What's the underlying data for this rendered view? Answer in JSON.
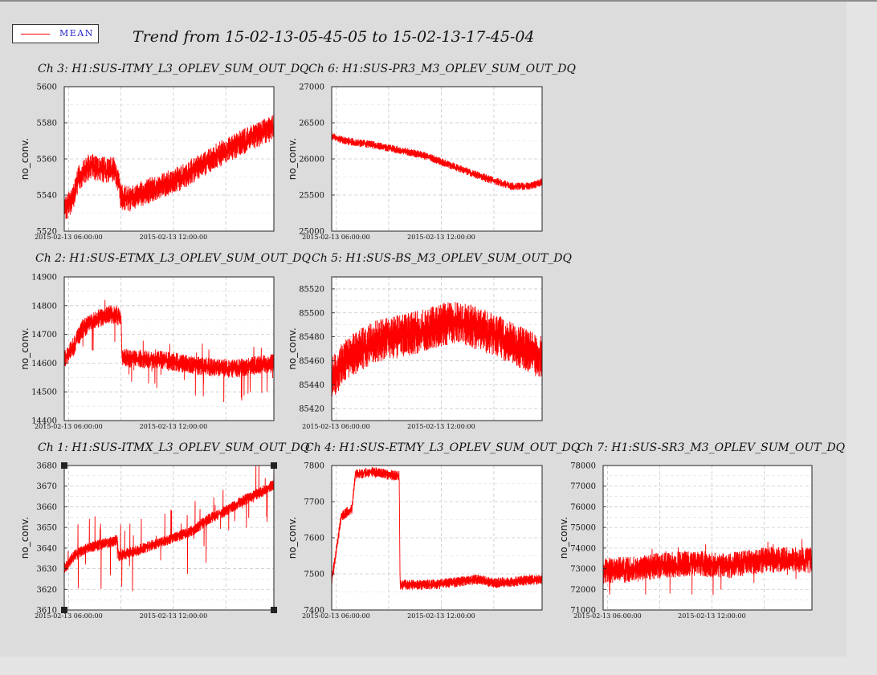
{
  "page": {
    "title": "Trend from 15-02-13-05-45-05 to 15-02-13-17-45-04",
    "legend_label": "MEAN",
    "series_color": "#ff0000",
    "background": "#dcdcdc"
  },
  "chart_data": [
    {
      "type": "line",
      "title": "Ch 3: H1:SUS-ITMY_L3_OPLEV_SUM_OUT_DQ",
      "ylabel": "no_conv.",
      "xticks": [
        "2015-02-13 06:00:00",
        "2015-02-13 12:00:00"
      ],
      "xlim_hours": [
        5.75,
        17.75
      ],
      "yticks": [
        5520,
        5540,
        5560,
        5580,
        5600
      ],
      "ylim": [
        5520,
        5600
      ],
      "grid": true,
      "series": [
        {
          "name": "MEAN",
          "shape": [
            [
              5.75,
              5532
            ],
            [
              6.2,
              5537
            ],
            [
              6.6,
              5550
            ],
            [
              7.2,
              5556
            ],
            [
              8.0,
              5554
            ],
            [
              8.6,
              5554
            ],
            [
              8.9,
              5548
            ],
            [
              8.95,
              5539
            ],
            [
              9.5,
              5538
            ],
            [
              10.5,
              5542
            ],
            [
              11.5,
              5546
            ],
            [
              12.5,
              5550
            ],
            [
              13.5,
              5556
            ],
            [
              14.5,
              5562
            ],
            [
              15.5,
              5567
            ],
            [
              16.5,
              5572
            ],
            [
              17.2,
              5575
            ],
            [
              17.75,
              5578
            ]
          ],
          "noise": 4,
          "spikes": 3
        }
      ]
    },
    {
      "type": "line",
      "title": "Ch 6: H1:SUS-PR3_M3_OPLEV_SUM_OUT_DQ",
      "ylabel": "no_conv.",
      "xticks": [
        "2015-02-13 06:00:00",
        "2015-02-13 12:00:00"
      ],
      "xlim_hours": [
        5.75,
        17.75
      ],
      "yticks": [
        25000,
        25500,
        26000,
        26500,
        27000
      ],
      "ylim": [
        25000,
        27000
      ],
      "grid": true,
      "series": [
        {
          "name": "MEAN",
          "shape": [
            [
              5.75,
              26320
            ],
            [
              6.5,
              26250
            ],
            [
              8.0,
              26200
            ],
            [
              10.0,
              26100
            ],
            [
              11.0,
              26050
            ],
            [
              12.0,
              25960
            ],
            [
              13.0,
              25870
            ],
            [
              14.0,
              25780
            ],
            [
              15.0,
              25700
            ],
            [
              16.0,
              25620
            ],
            [
              17.0,
              25620
            ],
            [
              17.75,
              25680
            ]
          ],
          "noise": 30,
          "spikes": 60
        }
      ]
    },
    {
      "type": "line",
      "title": "Ch 2: H1:SUS-ETMX_L3_OPLEV_SUM_OUT_DQ",
      "ylabel": "no_conv.",
      "xticks": [
        "2015-02-13 06:00:00",
        "2015-02-13 12:00:00"
      ],
      "xlim_hours": [
        5.75,
        17.75
      ],
      "yticks": [
        14400,
        14500,
        14600,
        14700,
        14800,
        14900
      ],
      "ylim": [
        14400,
        14900
      ],
      "grid": true,
      "series": [
        {
          "name": "MEAN",
          "shape": [
            [
              5.75,
              14610
            ],
            [
              6.3,
              14660
            ],
            [
              6.8,
              14720
            ],
            [
              7.5,
              14750
            ],
            [
              8.4,
              14770
            ],
            [
              9.0,
              14760
            ],
            [
              9.05,
              14620
            ],
            [
              10.0,
              14615
            ],
            [
              11.5,
              14610
            ],
            [
              12.5,
              14600
            ],
            [
              13.5,
              14590
            ],
            [
              14.5,
              14585
            ],
            [
              15.5,
              14580
            ],
            [
              16.5,
              14590
            ],
            [
              17.75,
              14600
            ]
          ],
          "noise": 18,
          "spikes": 120
        }
      ]
    },
    {
      "type": "line",
      "title": "Ch 5: H1:SUS-BS_M3_OPLEV_SUM_OUT_DQ",
      "ylabel": "no_conv.",
      "xticks": [
        "2015-02-13 06:00:00",
        "2015-02-13 12:00:00"
      ],
      "xlim_hours": [
        5.75,
        17.75
      ],
      "yticks": [
        85420,
        85440,
        85460,
        85480,
        85500,
        85520
      ],
      "ylim": [
        85410,
        85530
      ],
      "grid": true,
      "series": [
        {
          "name": "MEAN",
          "shape": [
            [
              5.75,
              85445
            ],
            [
              6.5,
              85460
            ],
            [
              8.0,
              85475
            ],
            [
              9.5,
              85480
            ],
            [
              11.0,
              85485
            ],
            [
              12.0,
              85490
            ],
            [
              13.0,
              85493
            ],
            [
              14.0,
              85487
            ],
            [
              15.0,
              85482
            ],
            [
              16.0,
              85475
            ],
            [
              17.0,
              85468
            ],
            [
              17.75,
              85462
            ]
          ],
          "noise": 10,
          "spikes": 15
        }
      ]
    },
    {
      "type": "line",
      "title": "Ch 1: H1:SUS-ITMX_L3_OPLEV_SUM_OUT_DQ",
      "ylabel": "no_conv.",
      "xticks": [
        "2015-02-13 06:00:00",
        "2015-02-13 12:00:00"
      ],
      "xlim_hours": [
        5.75,
        17.75
      ],
      "yticks": [
        3610,
        3620,
        3630,
        3640,
        3650,
        3660,
        3670,
        3680
      ],
      "ylim": [
        3610,
        3680
      ],
      "grid": true,
      "series": [
        {
          "name": "MEAN",
          "shape": [
            [
              5.75,
              3630
            ],
            [
              6.3,
              3636
            ],
            [
              7.0,
              3640
            ],
            [
              8.0,
              3642
            ],
            [
              8.8,
              3644
            ],
            [
              8.85,
              3636
            ],
            [
              10.0,
              3639
            ],
            [
              11.0,
              3642
            ],
            [
              12.0,
              3645
            ],
            [
              13.0,
              3648
            ],
            [
              14.0,
              3654
            ],
            [
              15.0,
              3658
            ],
            [
              16.0,
              3663
            ],
            [
              17.0,
              3667
            ],
            [
              17.75,
              3671
            ]
          ],
          "noise": 1.5,
          "spikes": 22
        }
      ]
    },
    {
      "type": "line",
      "title": "Ch 4: H1:SUS-ETMY_L3_OPLEV_SUM_OUT_DQ",
      "ylabel": "no_conv.",
      "xticks": [
        "2015-02-13 06:00:00",
        "2015-02-13 12:00:00"
      ],
      "xlim_hours": [
        5.75,
        17.75
      ],
      "yticks": [
        7400,
        7500,
        7600,
        7700,
        7800
      ],
      "ylim": [
        7400,
        7800
      ],
      "grid": true,
      "series": [
        {
          "name": "MEAN",
          "shape": [
            [
              5.75,
              7480
            ],
            [
              6.0,
              7560
            ],
            [
              6.3,
              7660
            ],
            [
              6.9,
              7680
            ],
            [
              7.1,
              7775
            ],
            [
              8.0,
              7782
            ],
            [
              9.0,
              7775
            ],
            [
              9.6,
              7770
            ],
            [
              9.65,
              7470
            ],
            [
              11.0,
              7470
            ],
            [
              12.0,
              7472
            ],
            [
              13.0,
              7478
            ],
            [
              14.0,
              7485
            ],
            [
              15.0,
              7475
            ],
            [
              16.0,
              7478
            ],
            [
              17.0,
              7483
            ],
            [
              17.75,
              7485
            ]
          ],
          "noise": 8,
          "spikes": 10
        }
      ]
    },
    {
      "type": "line",
      "title": "Ch 7: H1:SUS-SR3_M3_OPLEV_SUM_OUT_DQ",
      "ylabel": "no_conv.",
      "xticks": [
        "2015-02-13 06:00:00",
        "2015-02-13 12:00:00"
      ],
      "xlim_hours": [
        5.75,
        17.75
      ],
      "yticks": [
        71000,
        72000,
        73000,
        74000,
        75000,
        76000,
        77000,
        78000
      ],
      "ylim": [
        71000,
        78000
      ],
      "grid": true,
      "series": [
        {
          "name": "MEAN",
          "shape": [
            [
              5.75,
              72900
            ],
            [
              7.0,
              72950
            ],
            [
              8.0,
              73000
            ],
            [
              9.0,
              73150
            ],
            [
              10.0,
              73200
            ],
            [
              11.0,
              73250
            ],
            [
              12.0,
              73200
            ],
            [
              13.0,
              73150
            ],
            [
              14.0,
              73300
            ],
            [
              15.0,
              73400
            ],
            [
              16.0,
              73450
            ],
            [
              17.0,
              73450
            ],
            [
              17.75,
              73400
            ]
          ],
          "noise": 350,
          "spikes": 1500
        }
      ]
    }
  ]
}
